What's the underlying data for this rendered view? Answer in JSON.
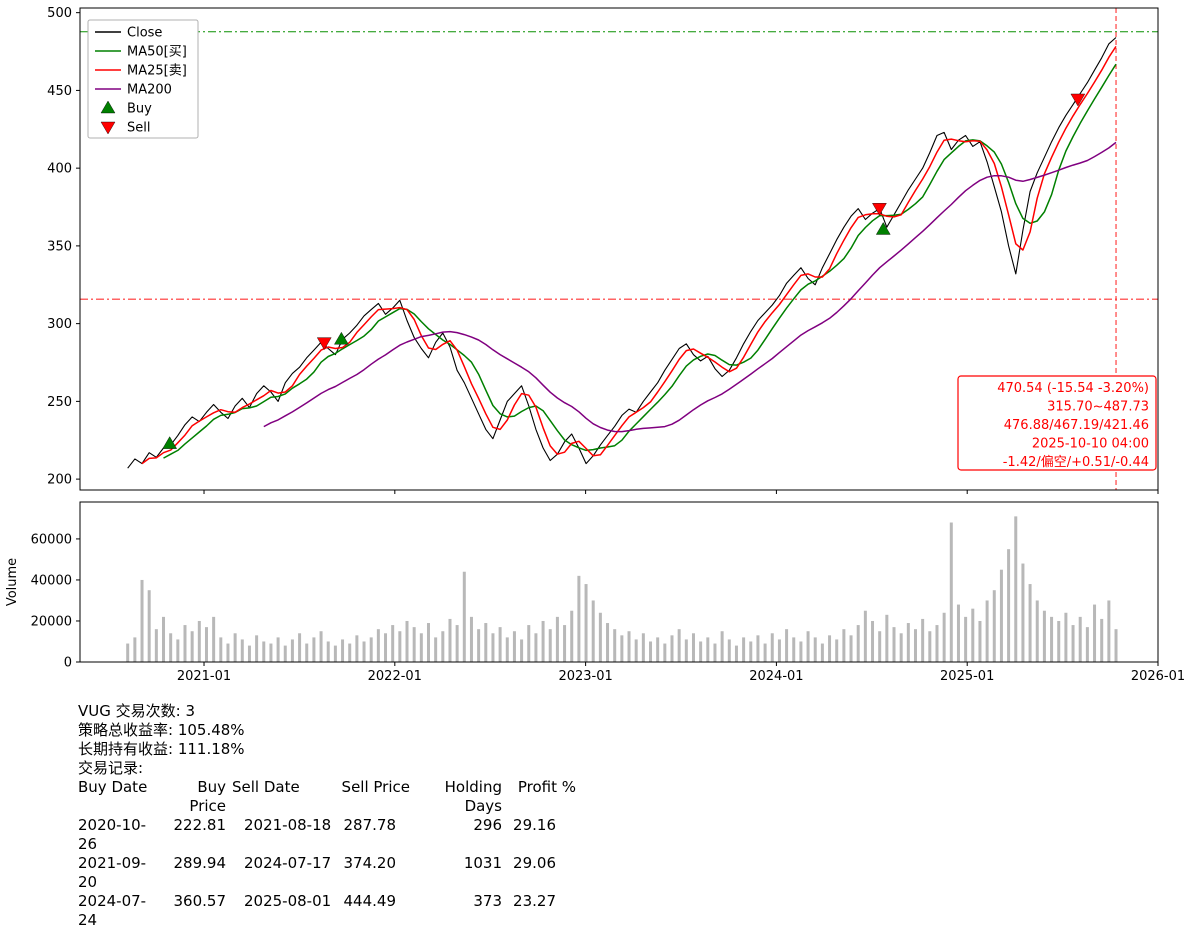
{
  "chart_data": [
    {
      "type": "line",
      "title": "",
      "x_start": 2020.6,
      "x_end": 2025.78,
      "x_axis": {
        "ticks": [
          {
            "t": 2021.0,
            "label": "2021-01"
          },
          {
            "t": 2022.0,
            "label": "2022-01"
          },
          {
            "t": 2023.0,
            "label": "2023-01"
          },
          {
            "t": 2024.0,
            "label": "2024-01"
          },
          {
            "t": 2025.0,
            "label": "2025-01"
          },
          {
            "t": 2026.0,
            "label": "2026-01"
          }
        ]
      },
      "y_axis": {
        "ticks": [
          200,
          250,
          300,
          350,
          400,
          450,
          500
        ],
        "range": [
          193,
          503
        ]
      },
      "series": [
        {
          "name": "Close",
          "color": "#000000",
          "values": [
            207,
            213,
            210,
            217,
            214,
            220,
            222,
            228,
            235,
            240,
            237,
            243,
            248,
            243,
            239,
            247,
            252,
            246,
            255,
            260,
            256,
            250,
            262,
            268,
            272,
            278,
            283,
            288,
            284,
            280,
            290,
            294,
            299,
            305,
            309,
            313,
            306,
            310,
            315,
            302,
            291,
            284,
            278,
            288,
            294,
            285,
            270,
            262,
            252,
            242,
            232,
            226,
            238,
            250,
            255,
            260,
            247,
            232,
            220,
            212,
            216,
            224,
            229,
            220,
            210,
            215,
            222,
            228,
            234,
            241,
            245,
            243,
            250,
            256,
            262,
            270,
            277,
            284,
            287,
            280,
            276,
            279,
            271,
            266,
            270,
            278,
            287,
            295,
            302,
            307,
            312,
            318,
            326,
            331,
            336,
            329,
            325,
            336,
            345,
            354,
            362,
            369,
            374,
            367,
            371,
            374,
            362,
            370,
            378,
            386,
            393,
            400,
            410,
            421,
            423,
            412,
            418,
            421,
            414,
            417,
            404,
            388,
            372,
            350,
            332,
            360,
            385,
            397,
            407,
            417,
            426,
            434,
            441,
            448,
            455,
            463,
            471,
            480,
            484
          ]
        }
      ],
      "moving_averages": [
        {
          "name": "MA50[买]",
          "color": "#008000",
          "window": 6
        },
        {
          "name": "MA25[卖]",
          "color": "#ff0000",
          "window": 3
        },
        {
          "name": "MA200",
          "color": "#800080",
          "window": 20
        }
      ],
      "hlines": [
        {
          "y": 487.73,
          "color": "#089000",
          "style": "dashdot"
        },
        {
          "y": 315.7,
          "color": "#ff3030",
          "style": "dashdot"
        }
      ],
      "vlines": [
        {
          "t": 2025.78,
          "color": "#ff3030",
          "style": "dashed"
        }
      ],
      "markers": {
        "buy": {
          "label": "Buy",
          "color": "#008000",
          "points": [
            {
              "t": 2020.82,
              "price": 222.81
            },
            {
              "t": 2021.72,
              "price": 289.94
            },
            {
              "t": 2024.56,
              "price": 360.57
            }
          ]
        },
        "sell": {
          "label": "Sell",
          "color": "#ff0000",
          "points": [
            {
              "t": 2021.63,
              "price": 287.78
            },
            {
              "t": 2024.54,
              "price": 374.2
            },
            {
              "t": 2025.58,
              "price": 444.49
            }
          ]
        }
      },
      "legend": {
        "position": "upper-left",
        "entries": [
          {
            "label": "Close",
            "color": "#000000",
            "marker": "line"
          },
          {
            "label": "MA50[买]",
            "color": "#008000",
            "marker": "line"
          },
          {
            "label": "MA25[卖]",
            "color": "#ff0000",
            "marker": "line"
          },
          {
            "label": "MA200",
            "color": "#800080",
            "marker": "line"
          },
          {
            "label": "Buy",
            "color": "#008000",
            "marker": "triangle-up"
          },
          {
            "label": "Sell",
            "color": "#ff0000",
            "marker": "triangle-down"
          }
        ]
      },
      "annotation": {
        "color": "#ff0000",
        "lines": [
          "470.54 (-15.54 -3.20%)",
          "315.70~487.73",
          "476.88/467.19/421.46",
          "2025-10-10 04:00",
          "-1.42/偏空/+0.51/-0.44"
        ]
      }
    },
    {
      "type": "bar",
      "name": "Volume",
      "ylabel": "Volume",
      "color": "#b8b8b8",
      "y_ticks": [
        0,
        20000,
        40000,
        60000
      ],
      "ymax": 78000,
      "values": [
        9000,
        12000,
        40000,
        35000,
        16000,
        22000,
        14000,
        11000,
        18000,
        15000,
        20000,
        17000,
        22000,
        12000,
        9000,
        14000,
        11000,
        8000,
        13000,
        10000,
        9000,
        12000,
        8000,
        11000,
        14000,
        9000,
        12000,
        15000,
        10000,
        8000,
        11000,
        9000,
        13000,
        10000,
        12000,
        16000,
        14000,
        18000,
        15000,
        20000,
        17000,
        14000,
        19000,
        12000,
        15000,
        21000,
        18000,
        44000,
        22000,
        16000,
        19000,
        14000,
        17000,
        12000,
        15000,
        11000,
        18000,
        14000,
        20000,
        16000,
        22000,
        18000,
        25000,
        42000,
        38000,
        30000,
        24000,
        19000,
        16000,
        13000,
        15000,
        11000,
        14000,
        10000,
        12000,
        9000,
        13000,
        16000,
        11000,
        14000,
        10000,
        12000,
        9000,
        15000,
        11000,
        8000,
        12000,
        10000,
        13000,
        9000,
        14000,
        11000,
        16000,
        12000,
        10000,
        15000,
        12000,
        9000,
        13000,
        11000,
        16000,
        13000,
        18000,
        25000,
        20000,
        15000,
        23000,
        17000,
        14000,
        19000,
        16000,
        21000,
        15000,
        18000,
        24000,
        68000,
        28000,
        22000,
        26000,
        20000,
        30000,
        35000,
        45000,
        55000,
        71000,
        48000,
        38000,
        30000,
        25000,
        22000,
        20000,
        24000,
        18000,
        22000,
        17000,
        28000,
        21000,
        30000,
        16000
      ]
    }
  ],
  "stats": {
    "trade_count_line": "VUG 交易次数: 3",
    "strategy_return_line": "策略总收益率: 105.48%",
    "hold_return_line": "长期持有收益: 111.18%",
    "records_label": "交易记录:",
    "table": {
      "headers": [
        "Buy Date",
        "Buy Price",
        "Sell Date",
        "Sell Price",
        "Holding Days",
        "Profit %"
      ],
      "rows": [
        [
          "2020-10-26",
          "222.81",
          "2021-08-18",
          "287.78",
          "296",
          "29.16"
        ],
        [
          "2021-09-20",
          "289.94",
          "2024-07-17",
          "374.20",
          "1031",
          "29.06"
        ],
        [
          "2024-07-24",
          "360.57",
          "2025-08-01",
          "444.49",
          "373",
          "23.27"
        ]
      ]
    }
  }
}
